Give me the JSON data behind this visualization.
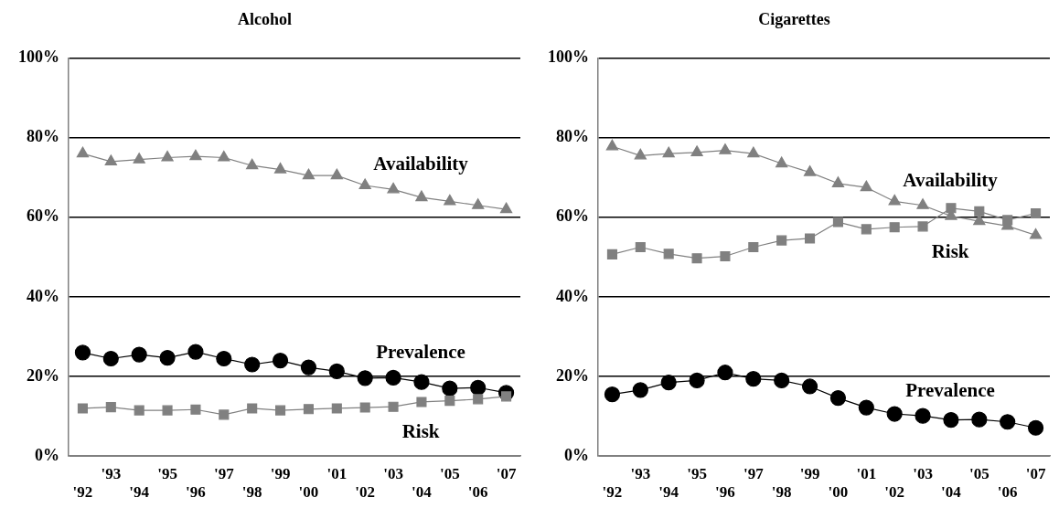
{
  "chart_data": [
    {
      "type": "line",
      "title": "Alcohol",
      "categories": [
        "'92",
        "'93",
        "'94",
        "'95",
        "'96",
        "'97",
        "'98",
        "'99",
        "'00",
        "'01",
        "'02",
        "'03",
        "'04",
        "'05",
        "'06",
        "'07"
      ],
      "ylim": [
        0,
        100
      ],
      "yticks": [
        {
          "value": 0,
          "label": "0%"
        },
        {
          "value": 20,
          "label": "20%"
        },
        {
          "value": 40,
          "label": "40%"
        },
        {
          "value": 60,
          "label": "60%"
        },
        {
          "value": 80,
          "label": "80%"
        },
        {
          "value": 100,
          "label": "100%"
        }
      ],
      "grid": "y",
      "legend": false,
      "line_style": "solid",
      "series": [
        {
          "name": "Availability",
          "color": "#808080",
          "marker": "triangle",
          "values": [
            76,
            74,
            74.5,
            75,
            75.3,
            75,
            73,
            72,
            70.5,
            70.5,
            68,
            67,
            65,
            64,
            63,
            62
          ]
        },
        {
          "name": "Prevalence",
          "color": "#000000",
          "marker": "circle",
          "values": [
            26,
            24.5,
            25.5,
            24.7,
            26.2,
            24.5,
            23,
            24,
            22.3,
            21.3,
            19.6,
            19.7,
            18.6,
            17,
            17.2,
            15.9
          ]
        },
        {
          "name": "Risk",
          "color": "#808080",
          "marker": "square",
          "values": [
            12,
            12.3,
            11.5,
            11.5,
            11.7,
            10.4,
            12,
            11.5,
            11.8,
            12,
            12.2,
            12.4,
            13.6,
            13.9,
            14.3,
            15
          ]
        }
      ]
    },
    {
      "type": "line",
      "title": "Cigarettes",
      "categories": [
        "'92",
        "'93",
        "'94",
        "'95",
        "'96",
        "'97",
        "'98",
        "'99",
        "'00",
        "'01",
        "'02",
        "'03",
        "'04",
        "'05",
        "'06",
        "'07"
      ],
      "ylim": [
        0,
        100
      ],
      "yticks": [
        {
          "value": 0,
          "label": "0%"
        },
        {
          "value": 20,
          "label": "20%"
        },
        {
          "value": 40,
          "label": "40%"
        },
        {
          "value": 60,
          "label": "60%"
        },
        {
          "value": 80,
          "label": "80%"
        },
        {
          "value": 100,
          "label": "100%"
        }
      ],
      "grid": "y",
      "legend": false,
      "line_style": "solid",
      "series": [
        {
          "name": "Availability",
          "color": "#808080",
          "marker": "triangle",
          "values": [
            77.8,
            75.5,
            76,
            76.3,
            76.8,
            76,
            73.5,
            71.3,
            68.5,
            67.5,
            64,
            63,
            60.3,
            59,
            57.8,
            55.5
          ]
        },
        {
          "name": "Risk",
          "color": "#808080",
          "marker": "square",
          "values": [
            50.7,
            52.5,
            50.8,
            49.7,
            50.2,
            52.5,
            54.2,
            54.7,
            58.8,
            57,
            57.5,
            57.7,
            62.3,
            61.5,
            59.3,
            61
          ]
        },
        {
          "name": "Prevalence",
          "color": "#000000",
          "marker": "circle",
          "values": [
            15.5,
            16.6,
            18.5,
            19,
            21,
            19.4,
            19,
            17.5,
            14.6,
            12.2,
            10.6,
            10.1,
            9.1,
            9.2,
            8.6,
            7.1
          ]
        }
      ]
    }
  ]
}
